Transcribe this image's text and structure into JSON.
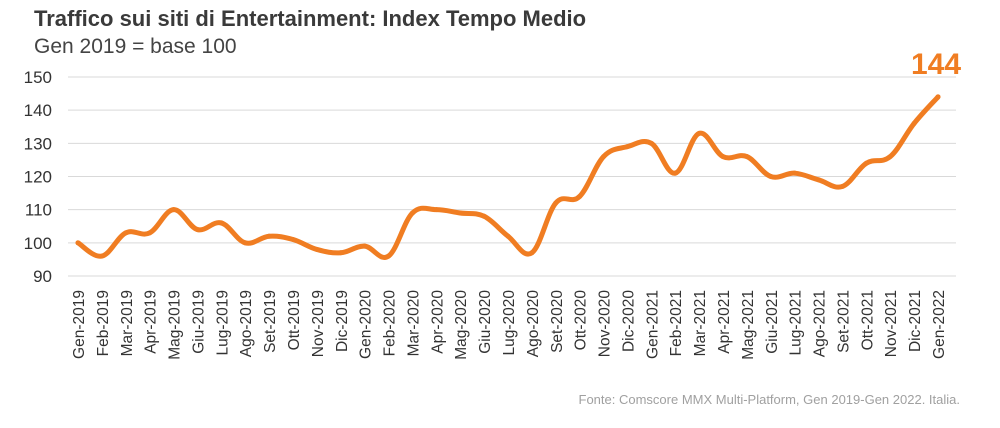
{
  "title": "Traffico sui siti di Entertainment: Index Tempo Medio",
  "subtitle": "Gen 2019 = base 100",
  "source": "Fonte: Comscore MMX Multi-Platform, Gen 2019-Gen 2022. Italia.",
  "chart_data": {
    "type": "line",
    "title": "Traffico sui siti di Entertainment: Index Tempo Medio",
    "subtitle": "Gen 2019 = base 100",
    "xlabel": "",
    "ylabel": "",
    "ylim": [
      90,
      150
    ],
    "yticks": [
      90,
      100,
      110,
      120,
      130,
      140,
      150
    ],
    "grid": "horizontal",
    "line_color": "#f07d22",
    "grid_color": "#d9d9d9",
    "end_label": "144",
    "categories": [
      "Gen-2019",
      "Feb-2019",
      "Mar-2019",
      "Apr-2019",
      "Mag-2019",
      "Giu-2019",
      "Lug-2019",
      "Ago-2019",
      "Set-2019",
      "Ott-2019",
      "Nov-2019",
      "Dic-2019",
      "Gen-2020",
      "Feb-2020",
      "Mar-2020",
      "Apr-2020",
      "Mag-2020",
      "Giu-2020",
      "Lug-2020",
      "Ago-2020",
      "Set-2020",
      "Ott-2020",
      "Nov-2020",
      "Dic-2020",
      "Gen-2021",
      "Feb-2021",
      "Mar-2021",
      "Apr-2021",
      "Mag-2021",
      "Giu-2021",
      "Lug-2021",
      "Ago-2021",
      "Set-2021",
      "Ott-2021",
      "Nov-2021",
      "Dic-2021",
      "Gen-2022"
    ],
    "values": [
      100,
      96,
      103,
      103,
      110,
      104,
      106,
      100,
      102,
      101,
      98,
      97,
      99,
      96,
      109,
      110,
      109,
      108,
      102,
      97,
      112,
      114,
      126,
      129,
      130,
      121,
      133,
      126,
      126,
      120,
      121,
      119,
      117,
      124,
      126,
      136,
      144
    ]
  }
}
